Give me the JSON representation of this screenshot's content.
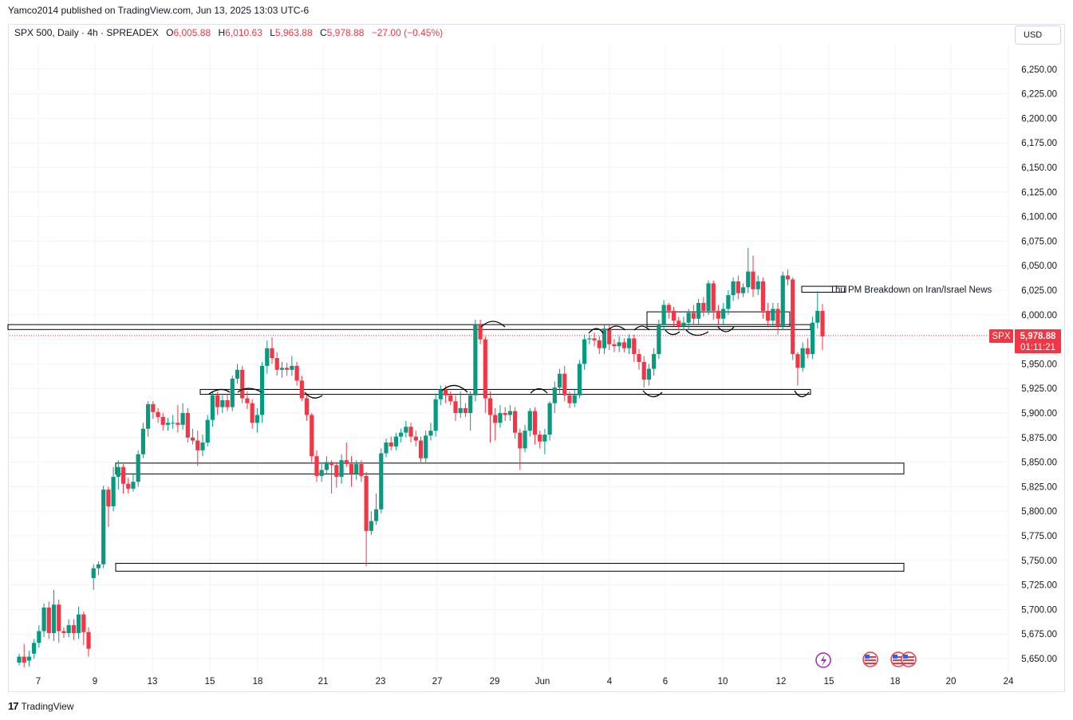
{
  "publish_line": "Yamco2014 published on TradingView.com, Jun 13, 2025 13:03 UTC-6",
  "legend": {
    "symbol": "SPX 500, Daily · 4h · SPREADEX",
    "o_label": "O",
    "o": "6,005.88",
    "h_label": "H",
    "h": "6,010.63",
    "l_label": "L",
    "l": "5,963.88",
    "c_label": "C",
    "c": "5,978.88",
    "change": "−27.00 (−0.45%)"
  },
  "currency": "USD",
  "price_tag": {
    "symbol": "SPX",
    "price": "5,978.88",
    "countdown": "01:11:21"
  },
  "annotation": "Thu PM Breakdown on Iran/Israel News",
  "footer_brand": "TradingView",
  "colors": {
    "up": "#089981",
    "down": "#f23645",
    "grid": "#f0f3fa",
    "text": "#131722"
  },
  "icons": [
    "lightning-event-icon",
    "us-flag-icon",
    "us-flag-icon",
    "us-flag-icon"
  ],
  "chart_data": {
    "type": "candlestick",
    "title": "SPX 500, Daily · 4h · SPREADEX",
    "ylim": [
      5637,
      6275
    ],
    "y_ticks": [
      5650,
      5675,
      5700,
      5725,
      5750,
      5775,
      5800,
      5825,
      5850,
      5875,
      5900,
      5925,
      5950,
      5975,
      6000,
      6025,
      6050,
      6075,
      6100,
      6125,
      6150,
      6175,
      6200,
      6225,
      6250
    ],
    "y_tick_labels": [
      "5,650.00",
      "5,675.00",
      "5,700.00",
      "5,725.00",
      "5,750.00",
      "5,775.00",
      "5,800.00",
      "5,825.00",
      "5,850.00",
      "5,875.00",
      "5,900.00",
      "5,925.00",
      "5,950.00",
      "5,975.00",
      "6,000.00",
      "6,025.00",
      "6,050.00",
      "6,075.00",
      "6,100.00",
      "6,125.00",
      "6,150.00",
      "6,175.00",
      "6,200.00",
      "6,225.00",
      "6,250.00"
    ],
    "x_ticks": [
      "7",
      "9",
      "13",
      "15",
      "18",
      "21",
      "23",
      "27",
      "29",
      "Jun",
      "4",
      "6",
      "10",
      "12",
      "15",
      "18",
      "20",
      "24"
    ],
    "last_price": 5978.88,
    "zones": [
      {
        "top": 5990,
        "bottom": 5985
      },
      {
        "top": 5924,
        "bottom": 5919
      },
      {
        "top": 5849,
        "bottom": 5838
      },
      {
        "top": 5747,
        "bottom": 5739
      },
      {
        "top": 6003,
        "bottom": 5988
      },
      {
        "top": 6029,
        "bottom": 6023
      }
    ],
    "candles": [
      [
        5646,
        5652,
        5643,
        5655
      ],
      [
        5652,
        5646,
        5641,
        5665
      ],
      [
        5648,
        5652,
        5642,
        5658
      ],
      [
        5655,
        5666,
        5650,
        5670
      ],
      [
        5666,
        5678,
        5661,
        5684
      ],
      [
        5678,
        5702,
        5672,
        5706
      ],
      [
        5702,
        5676,
        5670,
        5708
      ],
      [
        5676,
        5705,
        5668,
        5720
      ],
      [
        5705,
        5678,
        5666,
        5710
      ],
      [
        5678,
        5676,
        5671,
        5682
      ],
      [
        5676,
        5684,
        5672,
        5690
      ],
      [
        5684,
        5676,
        5669,
        5690
      ],
      [
        5676,
        5695,
        5670,
        5703
      ],
      [
        5695,
        5677,
        5664,
        5698
      ],
      [
        5677,
        5660,
        5652,
        5682
      ],
      [
        5732,
        5742,
        5720,
        5746
      ],
      [
        5742,
        5746,
        5735,
        5749
      ],
      [
        5746,
        5822,
        5742,
        5826
      ],
      [
        5822,
        5805,
        5784,
        5825
      ],
      [
        5805,
        5835,
        5800,
        5845
      ],
      [
        5835,
        5845,
        5822,
        5852
      ],
      [
        5845,
        5828,
        5818,
        5848
      ],
      [
        5828,
        5823,
        5818,
        5834
      ],
      [
        5823,
        5830,
        5820,
        5838
      ],
      [
        5830,
        5858,
        5825,
        5862
      ],
      [
        5858,
        5884,
        5854,
        5890
      ],
      [
        5884,
        5909,
        5876,
        5912
      ],
      [
        5909,
        5901,
        5894,
        5912
      ],
      [
        5901,
        5896,
        5890,
        5905
      ],
      [
        5896,
        5888,
        5882,
        5900
      ],
      [
        5888,
        5890,
        5882,
        5895
      ],
      [
        5890,
        5890,
        5884,
        5898
      ],
      [
        5890,
        5888,
        5880,
        5908
      ],
      [
        5888,
        5900,
        5883,
        5910
      ],
      [
        5900,
        5875,
        5870,
        5905
      ],
      [
        5875,
        5872,
        5868,
        5884
      ],
      [
        5872,
        5862,
        5846,
        5882
      ],
      [
        5862,
        5870,
        5856,
        5878
      ],
      [
        5870,
        5893,
        5866,
        5898
      ],
      [
        5893,
        5918,
        5886,
        5922
      ],
      [
        5918,
        5906,
        5898,
        5922
      ],
      [
        5906,
        5913,
        5900,
        5918
      ],
      [
        5913,
        5906,
        5902,
        5920
      ],
      [
        5906,
        5935,
        5902,
        5938
      ],
      [
        5935,
        5944,
        5930,
        5950
      ],
      [
        5944,
        5915,
        5910,
        5948
      ],
      [
        5915,
        5910,
        5904,
        5922
      ],
      [
        5910,
        5890,
        5884,
        5914
      ],
      [
        5890,
        5898,
        5880,
        5905
      ],
      [
        5898,
        5948,
        5890,
        5952
      ],
      [
        5948,
        5966,
        5940,
        5974
      ],
      [
        5966,
        5956,
        5950,
        5977
      ],
      [
        5956,
        5944,
        5938,
        5962
      ],
      [
        5944,
        5946,
        5936,
        5952
      ],
      [
        5946,
        5944,
        5938,
        5951
      ],
      [
        5944,
        5948,
        5938,
        5958
      ],
      [
        5948,
        5933,
        5928,
        5952
      ],
      [
        5933,
        5915,
        5912,
        5938
      ],
      [
        5915,
        5898,
        5892,
        5920
      ],
      [
        5898,
        5856,
        5850,
        5900
      ],
      [
        5856,
        5836,
        5830,
        5862
      ],
      [
        5836,
        5842,
        5830,
        5848
      ],
      [
        5842,
        5850,
        5838,
        5856
      ],
      [
        5850,
        5847,
        5818,
        5852
      ],
      [
        5847,
        5835,
        5824,
        5850
      ],
      [
        5835,
        5852,
        5828,
        5858
      ],
      [
        5852,
        5848,
        5845,
        5870
      ],
      [
        5848,
        5838,
        5825,
        5856
      ],
      [
        5838,
        5848,
        5832,
        5852
      ],
      [
        5848,
        5836,
        5830,
        5852
      ],
      [
        5836,
        5780,
        5744,
        5840
      ],
      [
        5780,
        5790,
        5776,
        5800
      ],
      [
        5790,
        5802,
        5786,
        5818
      ],
      [
        5802,
        5859,
        5798,
        5864
      ],
      [
        5859,
        5870,
        5855,
        5874
      ],
      [
        5870,
        5866,
        5862,
        5876
      ],
      [
        5866,
        5876,
        5862,
        5880
      ],
      [
        5876,
        5880,
        5870,
        5884
      ],
      [
        5880,
        5886,
        5875,
        5892
      ],
      [
        5886,
        5876,
        5870,
        5890
      ],
      [
        5876,
        5872,
        5866,
        5882
      ],
      [
        5872,
        5854,
        5850,
        5876
      ],
      [
        5854,
        5877,
        5850,
        5882
      ],
      [
        5877,
        5882,
        5872,
        5890
      ],
      [
        5882,
        5914,
        5876,
        5920
      ],
      [
        5914,
        5924,
        5908,
        5928
      ],
      [
        5924,
        5918,
        5910,
        5928
      ],
      [
        5918,
        5912,
        5908,
        5922
      ],
      [
        5912,
        5900,
        5892,
        5918
      ],
      [
        5900,
        5905,
        5895,
        5922
      ],
      [
        5905,
        5900,
        5896,
        5910
      ],
      [
        5900,
        5918,
        5882,
        5922
      ],
      [
        5918,
        5990,
        5912,
        5995
      ],
      [
        5990,
        5975,
        5970,
        5995
      ],
      [
        5975,
        5915,
        5900,
        5978
      ],
      [
        5915,
        5898,
        5870,
        5922
      ],
      [
        5898,
        5890,
        5872,
        5905
      ],
      [
        5890,
        5900,
        5885,
        5908
      ],
      [
        5900,
        5898,
        5892,
        5906
      ],
      [
        5898,
        5902,
        5892,
        5908
      ],
      [
        5902,
        5880,
        5874,
        5906
      ],
      [
        5880,
        5864,
        5842,
        5884
      ],
      [
        5864,
        5882,
        5860,
        5888
      ],
      [
        5882,
        5902,
        5876,
        5905
      ],
      [
        5902,
        5878,
        5868,
        5906
      ],
      [
        5878,
        5871,
        5864,
        5882
      ],
      [
        5871,
        5878,
        5858,
        5884
      ],
      [
        5878,
        5910,
        5872,
        5912
      ],
      [
        5910,
        5926,
        5900,
        5932
      ],
      [
        5926,
        5940,
        5920,
        5945
      ],
      [
        5940,
        5918,
        5912,
        5948
      ],
      [
        5918,
        5910,
        5905,
        5922
      ],
      [
        5910,
        5918,
        5906,
        5924
      ],
      [
        5918,
        5950,
        5915,
        5954
      ],
      [
        5950,
        5975,
        5944,
        5980
      ],
      [
        5975,
        5976,
        5970,
        5980
      ],
      [
        5976,
        5974,
        5968,
        5982
      ],
      [
        5974,
        5966,
        5960,
        5978
      ],
      [
        5966,
        5986,
        5960,
        5990
      ],
      [
        5986,
        5970,
        5964,
        5990
      ],
      [
        5970,
        5968,
        5962,
        5975
      ],
      [
        5968,
        5972,
        5962,
        5978
      ],
      [
        5972,
        5966,
        5962,
        5976
      ],
      [
        5966,
        5976,
        5960,
        5980
      ],
      [
        5976,
        5960,
        5952,
        5980
      ],
      [
        5960,
        5952,
        5944,
        5965
      ],
      [
        5952,
        5934,
        5926,
        5958
      ],
      [
        5934,
        5945,
        5928,
        5950
      ],
      [
        5945,
        5960,
        5938,
        5966
      ],
      [
        5960,
        5990,
        5955,
        5995
      ],
      [
        5990,
        6010,
        5985,
        6015
      ],
      [
        6010,
        6004,
        5996,
        6012
      ],
      [
        6004,
        5994,
        5988,
        6008
      ],
      [
        5994,
        5988,
        5984,
        5998
      ],
      [
        5988,
        5992,
        5984,
        5998
      ],
      [
        5992,
        6002,
        5985,
        6006
      ],
      [
        6002,
        5996,
        5990,
        6010
      ],
      [
        5996,
        6012,
        5990,
        6016
      ],
      [
        6012,
        6004,
        5998,
        6018
      ],
      [
        6004,
        6032,
        6000,
        6035
      ],
      [
        6032,
        6004,
        5995,
        6035
      ],
      [
        6004,
        5996,
        5990,
        6010
      ],
      [
        5996,
        6006,
        5990,
        6012
      ],
      [
        6006,
        6020,
        6000,
        6025
      ],
      [
        6020,
        6034,
        6014,
        6038
      ],
      [
        6034,
        6022,
        6016,
        6040
      ],
      [
        6022,
        6028,
        6018,
        6032
      ],
      [
        6028,
        6044,
        6022,
        6068
      ],
      [
        6044,
        6026,
        6018,
        6060
      ],
      [
        6026,
        6034,
        6020,
        6040
      ],
      [
        6034,
        6004,
        5996,
        6038
      ],
      [
        6004,
        5994,
        5988,
        6012
      ],
      [
        5994,
        6006,
        5988,
        6012
      ],
      [
        6006,
        5988,
        5980,
        6012
      ],
      [
        5988,
        6040,
        5984,
        6044
      ],
      [
        6040,
        6036,
        6030,
        6046
      ],
      [
        6036,
        5960,
        5954,
        6038
      ],
      [
        5960,
        5946,
        5928,
        5962
      ],
      [
        5946,
        5966,
        5942,
        5972
      ],
      [
        5966,
        5960,
        5956,
        5976
      ],
      [
        5960,
        5992,
        5955,
        5998
      ],
      [
        5992,
        6004,
        5986,
        6024
      ],
      [
        6004,
        5978,
        5964,
        6011
      ]
    ]
  }
}
